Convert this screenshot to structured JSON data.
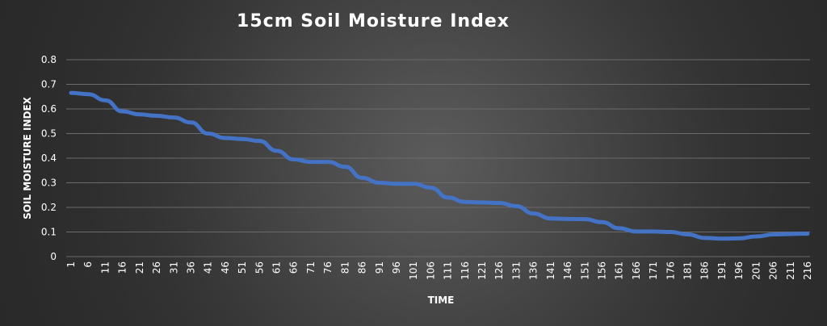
{
  "chart_data": {
    "type": "line",
    "title": "15cm Soil Moisture Index",
    "xlabel": "TIME",
    "ylabel": "SOIL MOISTURE INDEX",
    "ylim": [
      0,
      0.8
    ],
    "yticks": [
      "0",
      "0.1",
      "0.2",
      "0.3",
      "0.4",
      "0.5",
      "0.6",
      "0.7",
      "0.8"
    ],
    "grid": true,
    "xtick_labels": [
      "1",
      "6",
      "11",
      "16",
      "21",
      "26",
      "31",
      "36",
      "41",
      "46",
      "51",
      "56",
      "61",
      "66",
      "71",
      "76",
      "81",
      "86",
      "91",
      "96",
      "101",
      "106",
      "111",
      "116",
      "121",
      "126",
      "131",
      "136",
      "141",
      "146",
      "151",
      "156",
      "161",
      "166",
      "171",
      "176",
      "181",
      "186",
      "191",
      "196",
      "201",
      "206",
      "211",
      "216"
    ],
    "x": [
      1,
      6,
      11,
      16,
      21,
      26,
      31,
      36,
      41,
      46,
      51,
      56,
      61,
      66,
      71,
      76,
      81,
      86,
      91,
      96,
      101,
      106,
      111,
      116,
      121,
      126,
      131,
      136,
      141,
      146,
      151,
      156,
      161,
      166,
      171,
      176,
      181,
      186,
      191,
      196,
      201,
      206,
      211,
      216
    ],
    "series": [
      {
        "color": "#4472c4",
        "values": [
          0.665,
          0.66,
          0.635,
          0.59,
          0.578,
          0.572,
          0.565,
          0.545,
          0.5,
          0.482,
          0.478,
          0.47,
          0.43,
          0.395,
          0.385,
          0.385,
          0.365,
          0.32,
          0.3,
          0.296,
          0.296,
          0.28,
          0.24,
          0.222,
          0.22,
          0.218,
          0.205,
          0.175,
          0.155,
          0.153,
          0.152,
          0.14,
          0.115,
          0.102,
          0.102,
          0.1,
          0.09,
          0.076,
          0.073,
          0.074,
          0.082,
          0.09,
          0.092,
          0.093
        ]
      }
    ]
  }
}
